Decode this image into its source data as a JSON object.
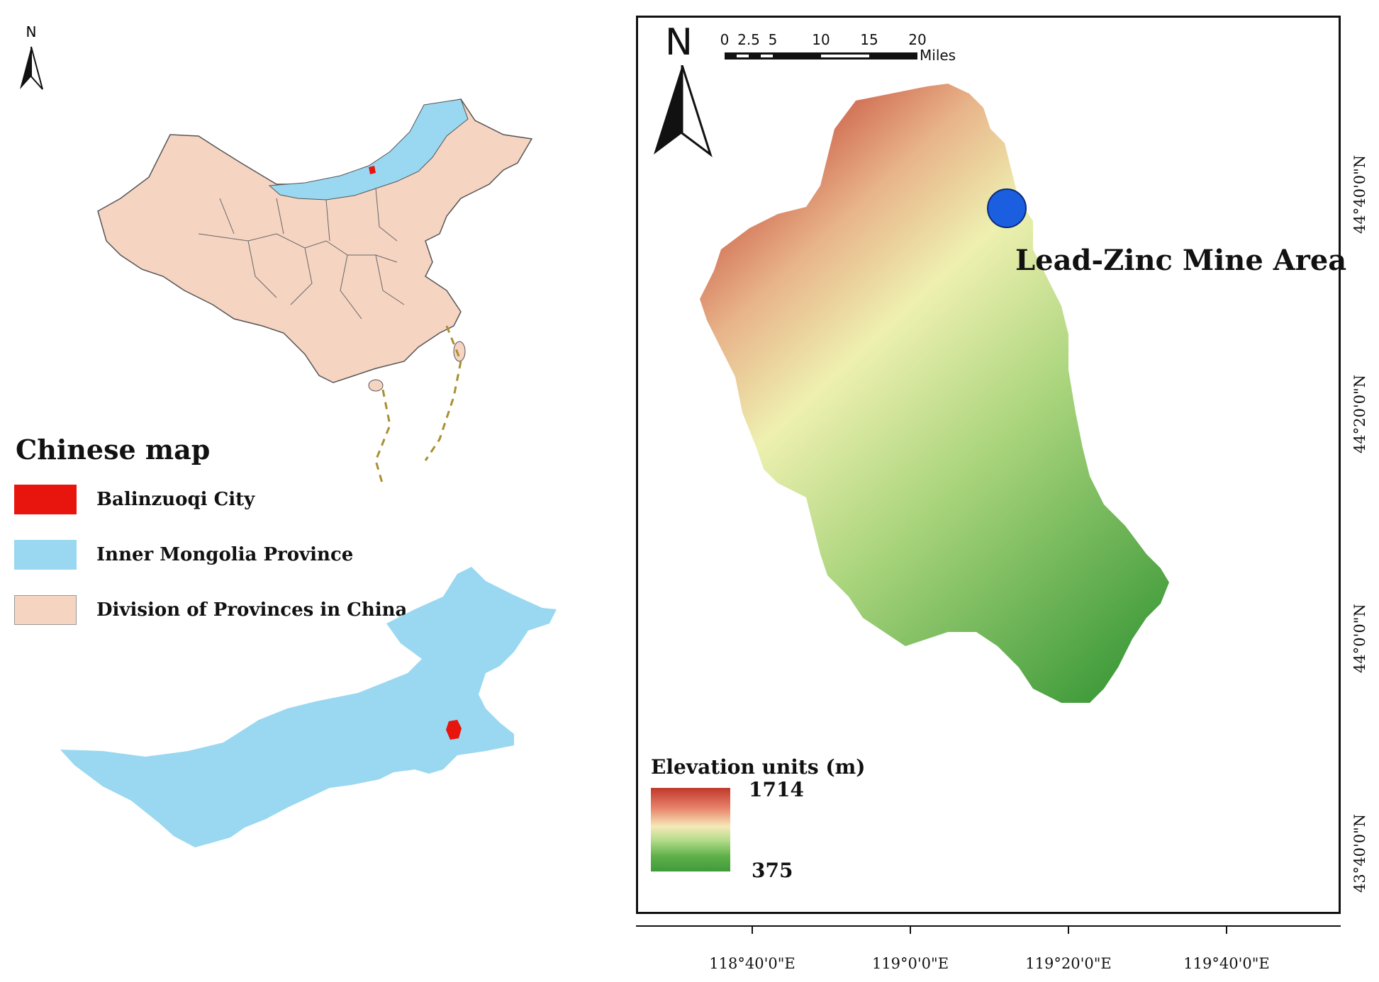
{
  "left_panel": {
    "north_label": "N",
    "legend": {
      "title": "Chinese map",
      "items": [
        {
          "label": "Balinzuoqi City",
          "color": "#e8140e"
        },
        {
          "label": "Inner Mongolia Province",
          "color": "#99d8f0"
        },
        {
          "label": "Division of Provinces in China",
          "color": "#f6d4c2"
        }
      ]
    }
  },
  "right_panel": {
    "north_label": "N",
    "scale": {
      "ticks": [
        "0",
        "2.5",
        "5",
        "10",
        "15",
        "20"
      ],
      "unit": "Miles"
    },
    "mine": {
      "label": "Lead-Zinc Mine Area",
      "color": "#1b5fe0"
    },
    "elevation_legend": {
      "title": "Elevation units (m)",
      "max": "1714",
      "min": "375",
      "colors": [
        "#c0392b",
        "#f6e9b8",
        "#3f9b3a"
      ]
    },
    "x_axis_labels": [
      "118°40'0\"E",
      "119°0'0\"E",
      "119°20'0\"E",
      "119°40'0\"E"
    ],
    "y_axis_labels": [
      "44°40'0\"N",
      "44°20'0\"N",
      "44°0'0\"N",
      "43°40'0\"N"
    ]
  }
}
